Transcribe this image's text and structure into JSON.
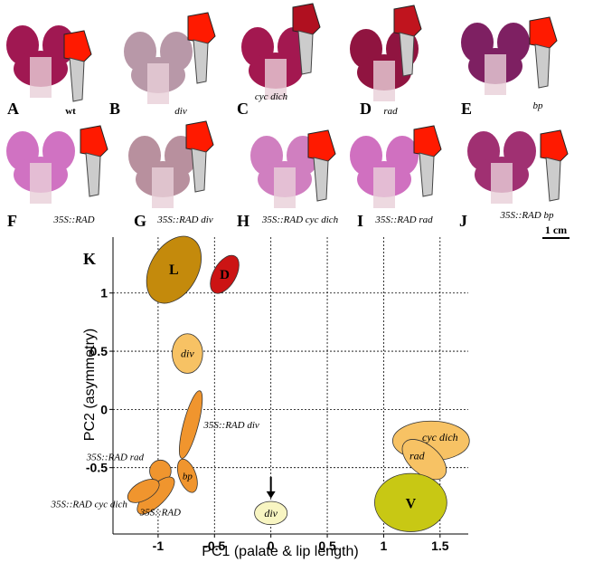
{
  "panels": [
    {
      "letter": "A",
      "genotype": "wt"
    },
    {
      "letter": "B",
      "genotype": "div"
    },
    {
      "letter": "C",
      "genotype": "cyc dich"
    },
    {
      "letter": "D",
      "genotype": "rad"
    },
    {
      "letter": "E",
      "genotype": "bp"
    },
    {
      "letter": "F",
      "genotype": "35S::RAD"
    },
    {
      "letter": "G",
      "genotype": "35S::RAD div"
    },
    {
      "letter": "H",
      "genotype": "35S::RAD cyc dich"
    },
    {
      "letter": "I",
      "genotype": "35S::RAD rad"
    },
    {
      "letter": "J",
      "genotype": "35S::RAD bp"
    }
  ],
  "scale_bar": "1 cm",
  "chart_data": {
    "type": "ellipse",
    "panel": "K",
    "x_label": "PC1 (palate & lip length)",
    "y_label": "PC2 (asymmetry)",
    "xlim": [
      -1.4,
      1.75
    ],
    "ylim": [
      -1.07,
      1.48
    ],
    "xticks": [
      -1,
      -0.5,
      0,
      0.5,
      1,
      1.5
    ],
    "yticks": [
      -0.5,
      0,
      0.5,
      1
    ],
    "grid": true,
    "series": [
      {
        "name": "L",
        "color": "#c48a0c",
        "x": -0.86,
        "y": 1.2,
        "width": 0.42,
        "height": 0.62,
        "angle": 30
      },
      {
        "name": "D",
        "color": "#cc1414",
        "x": -0.41,
        "y": 1.16,
        "width": 0.2,
        "height": 0.36,
        "angle": 30
      },
      {
        "name": "div",
        "color": "#f7c264",
        "x": -0.74,
        "y": 0.48,
        "width": 0.27,
        "height": 0.34,
        "angle": 0
      },
      {
        "name": "35S::RAD div",
        "color": "#f0952e",
        "x": -0.71,
        "y": -0.13,
        "width": 0.13,
        "height": 0.6,
        "angle": 15
      },
      {
        "name": "bp",
        "color": "#f0952e",
        "x": -0.74,
        "y": -0.57,
        "width": 0.15,
        "height": 0.3,
        "angle": -20
      },
      {
        "name": "35S::RAD rad",
        "color": "#f0952e",
        "x": -0.98,
        "y": -0.53,
        "width": 0.19,
        "height": 0.19,
        "angle": 0
      },
      {
        "name": "35S::RAD",
        "color": "#f0952e",
        "x": -1.02,
        "y": -0.74,
        "width": 0.17,
        "height": 0.42,
        "angle": 45
      },
      {
        "name": "35S::RAD cyc dich",
        "color": "#f0952e",
        "x": -1.13,
        "y": -0.7,
        "width": 0.16,
        "height": 0.3,
        "angle": 60
      },
      {
        "name": "cyc dich",
        "color": "#f7c264",
        "x": 1.42,
        "y": -0.27,
        "width": 0.68,
        "height": 0.34,
        "angle": 0
      },
      {
        "name": "rad",
        "color": "#f7c264",
        "x": 1.36,
        "y": -0.43,
        "width": 0.46,
        "height": 0.25,
        "angle": 40
      },
      {
        "name": "V",
        "color": "#c8c814",
        "x": 1.24,
        "y": -0.8,
        "width": 0.64,
        "height": 0.5,
        "angle": 0
      },
      {
        "name": "div",
        "color": "#f8f5c2",
        "x": 0.0,
        "y": -0.89,
        "width": 0.29,
        "height": 0.2,
        "angle": 0
      }
    ]
  }
}
